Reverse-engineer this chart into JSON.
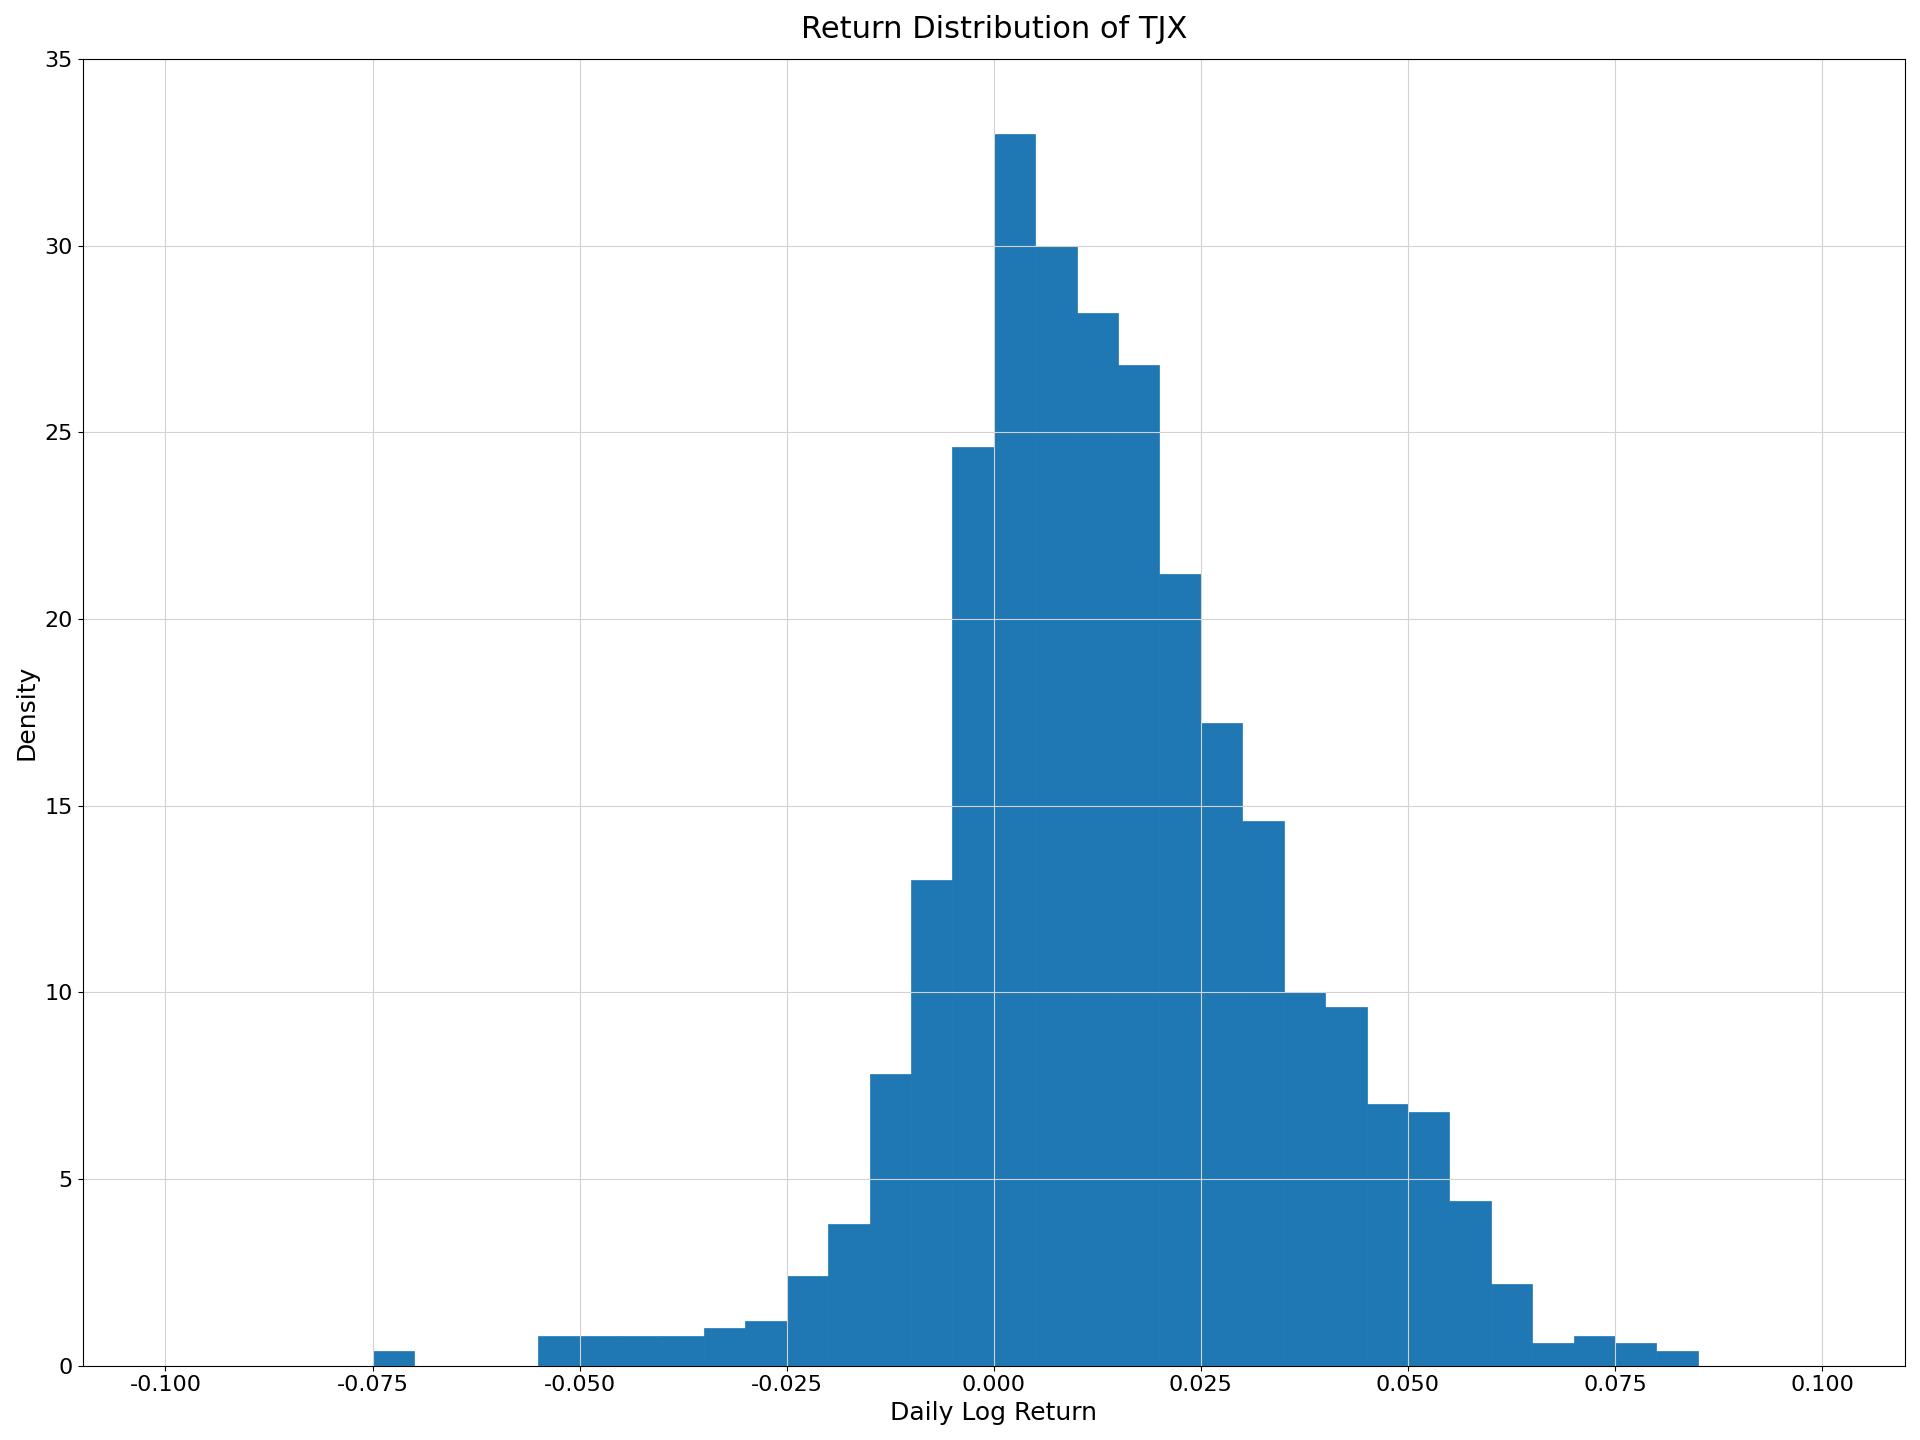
{
  "title": "Return Distribution of TJX",
  "xlabel": "Daily Log Return",
  "ylabel": "Density",
  "bar_color": "#1f77b4",
  "xlim": [
    -0.11,
    0.11
  ],
  "ylim": [
    0,
    35
  ],
  "xticks": [
    -0.1,
    -0.075,
    -0.05,
    -0.025,
    0.0,
    0.025,
    0.05,
    0.075,
    0.1
  ],
  "yticks": [
    0,
    5,
    10,
    15,
    20,
    25,
    30,
    35
  ],
  "grid": true,
  "bin_edges": [
    -0.11,
    -0.105,
    -0.1,
    -0.095,
    -0.09,
    -0.085,
    -0.08,
    -0.075,
    -0.07,
    -0.065,
    -0.06,
    -0.055,
    -0.05,
    -0.045,
    -0.04,
    -0.035,
    -0.03,
    -0.025,
    -0.02,
    -0.015,
    -0.01,
    -0.005,
    0.0,
    0.005,
    0.01,
    0.015,
    0.02,
    0.025,
    0.03,
    0.035,
    0.04,
    0.045,
    0.05,
    0.055,
    0.06,
    0.065,
    0.07,
    0.075,
    0.08,
    0.085,
    0.09,
    0.095,
    0.1,
    0.105,
    0.11
  ],
  "bin_heights": [
    0.0,
    0.0,
    0.0,
    0.0,
    0.0,
    0.0,
    0.0,
    0.4,
    0.0,
    0.0,
    0.0,
    0.8,
    0.8,
    0.8,
    0.8,
    1.0,
    1.2,
    2.4,
    3.8,
    7.8,
    13.0,
    24.6,
    33.0,
    30.0,
    28.2,
    26.8,
    21.2,
    17.2,
    14.6,
    10.0,
    9.6,
    7.0,
    6.8,
    4.4,
    2.2,
    0.6,
    0.8,
    0.6,
    0.4,
    0.0,
    0.0,
    0.0,
    0.0,
    0.0
  ],
  "title_fontsize": 22,
  "label_fontsize": 18,
  "tick_fontsize": 16,
  "figsize": [
    19.2,
    14.4
  ],
  "dpi": 100
}
